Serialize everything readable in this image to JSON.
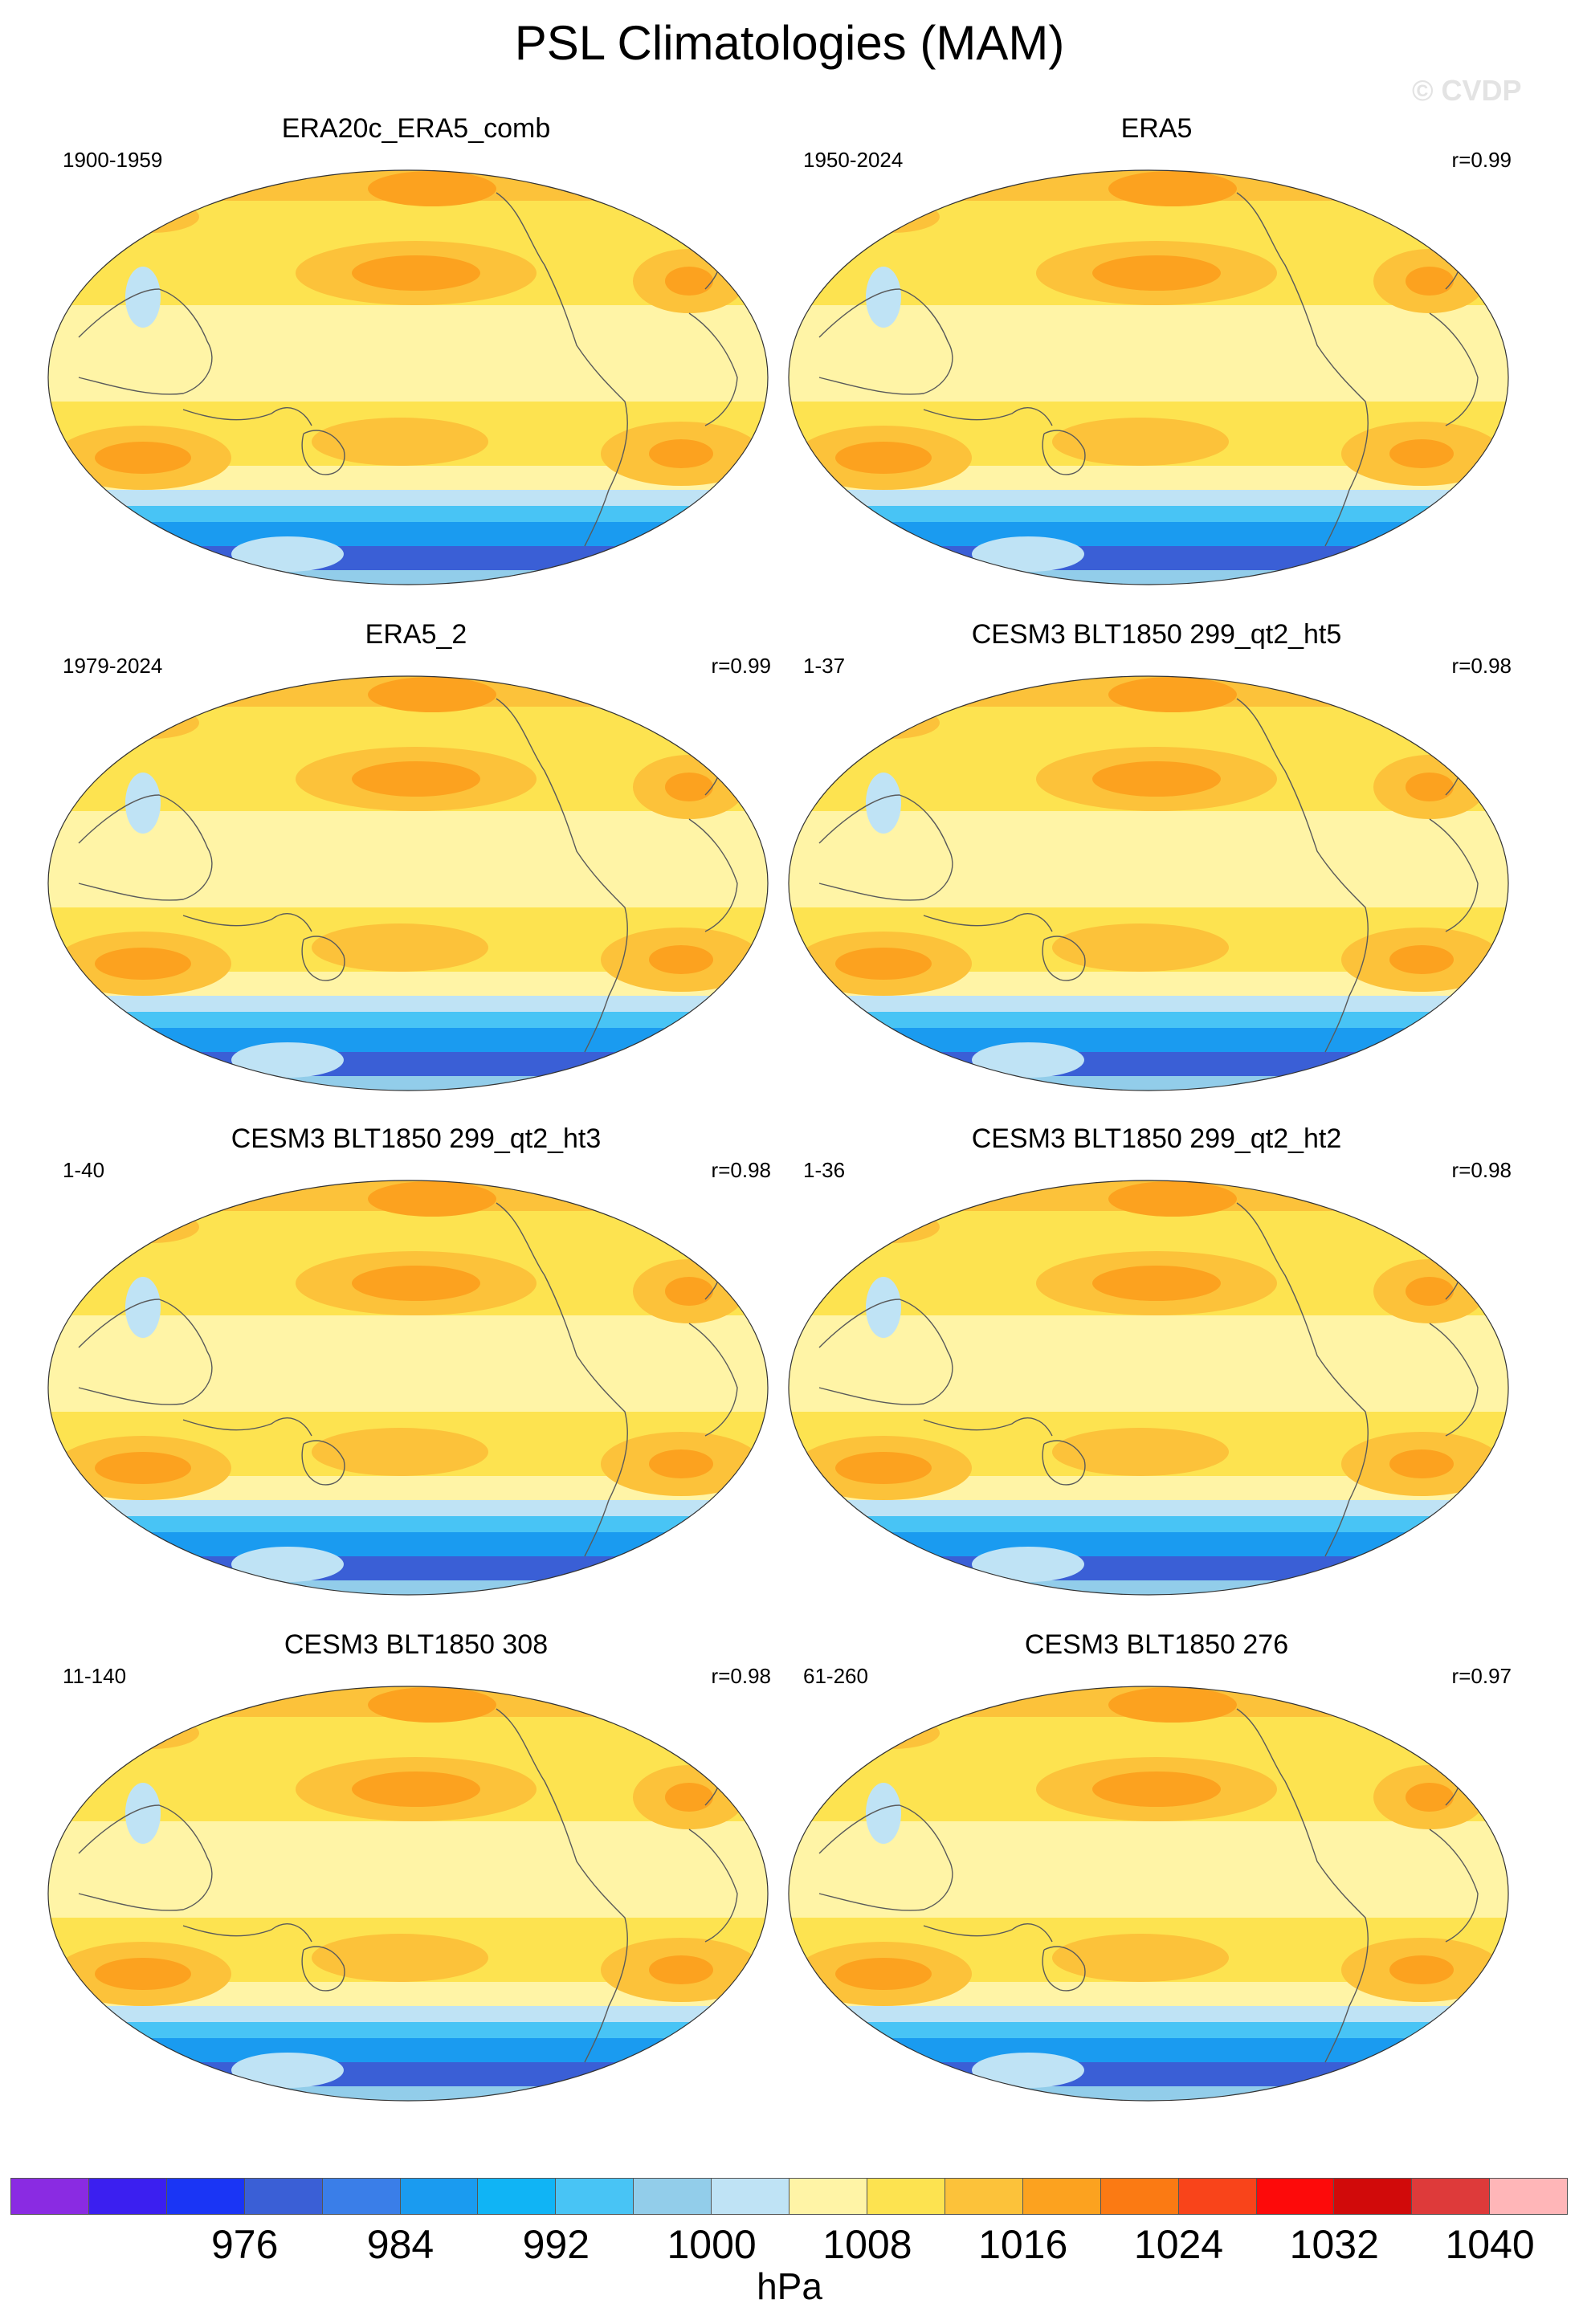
{
  "title": "PSL Climatologies (MAM)",
  "watermark": "© CVDP",
  "colorbar": {
    "unit": "hPa",
    "colors": [
      "#8a2be2",
      "#3b1ff0",
      "#1a35f5",
      "#3a5fd6",
      "#3a7ee8",
      "#1a9bf0",
      "#10b4f5",
      "#48c4f5",
      "#92cdea",
      "#bfe3f5",
      "#fff4a6",
      "#fde350",
      "#fcc23a",
      "#fca21f",
      "#fb7a13",
      "#f9441a",
      "#fd0a0a",
      "#d10a0a",
      "#de3a3a",
      "#ffb6b8"
    ],
    "labels": [
      {
        "text": "976",
        "boundary": 3
      },
      {
        "text": "984",
        "boundary": 5
      },
      {
        "text": "992",
        "boundary": 7
      },
      {
        "text": "1000",
        "boundary": 9
      },
      {
        "text": "1008",
        "boundary": 11
      },
      {
        "text": "1016",
        "boundary": 13
      },
      {
        "text": "1024",
        "boundary": 15
      },
      {
        "text": "1032",
        "boundary": 17
      },
      {
        "text": "1040",
        "boundary": 19
      }
    ]
  },
  "panels": [
    {
      "name": "ERA20c_ERA5_comb",
      "period": "1900-1959",
      "corr": ""
    },
    {
      "name": "ERA5",
      "period": "1950-2024",
      "corr": "r=0.99"
    },
    {
      "name": "ERA5_2",
      "period": "1979-2024",
      "corr": "r=0.99"
    },
    {
      "name": "CESM3 BLT1850 299_qt2_ht5",
      "period": "1-37",
      "corr": "r=0.98"
    },
    {
      "name": "CESM3 BLT1850 299_qt2_ht3",
      "period": "1-40",
      "corr": "r=0.98"
    },
    {
      "name": "CESM3 BLT1850 299_qt2_ht2",
      "period": "1-36",
      "corr": "r=0.98"
    },
    {
      "name": "CESM3 BLT1850 308",
      "period": "11-140",
      "corr": "r=0.98"
    },
    {
      "name": "CESM3 BLT1850 276",
      "period": "61-260",
      "corr": "r=0.97"
    }
  ]
}
